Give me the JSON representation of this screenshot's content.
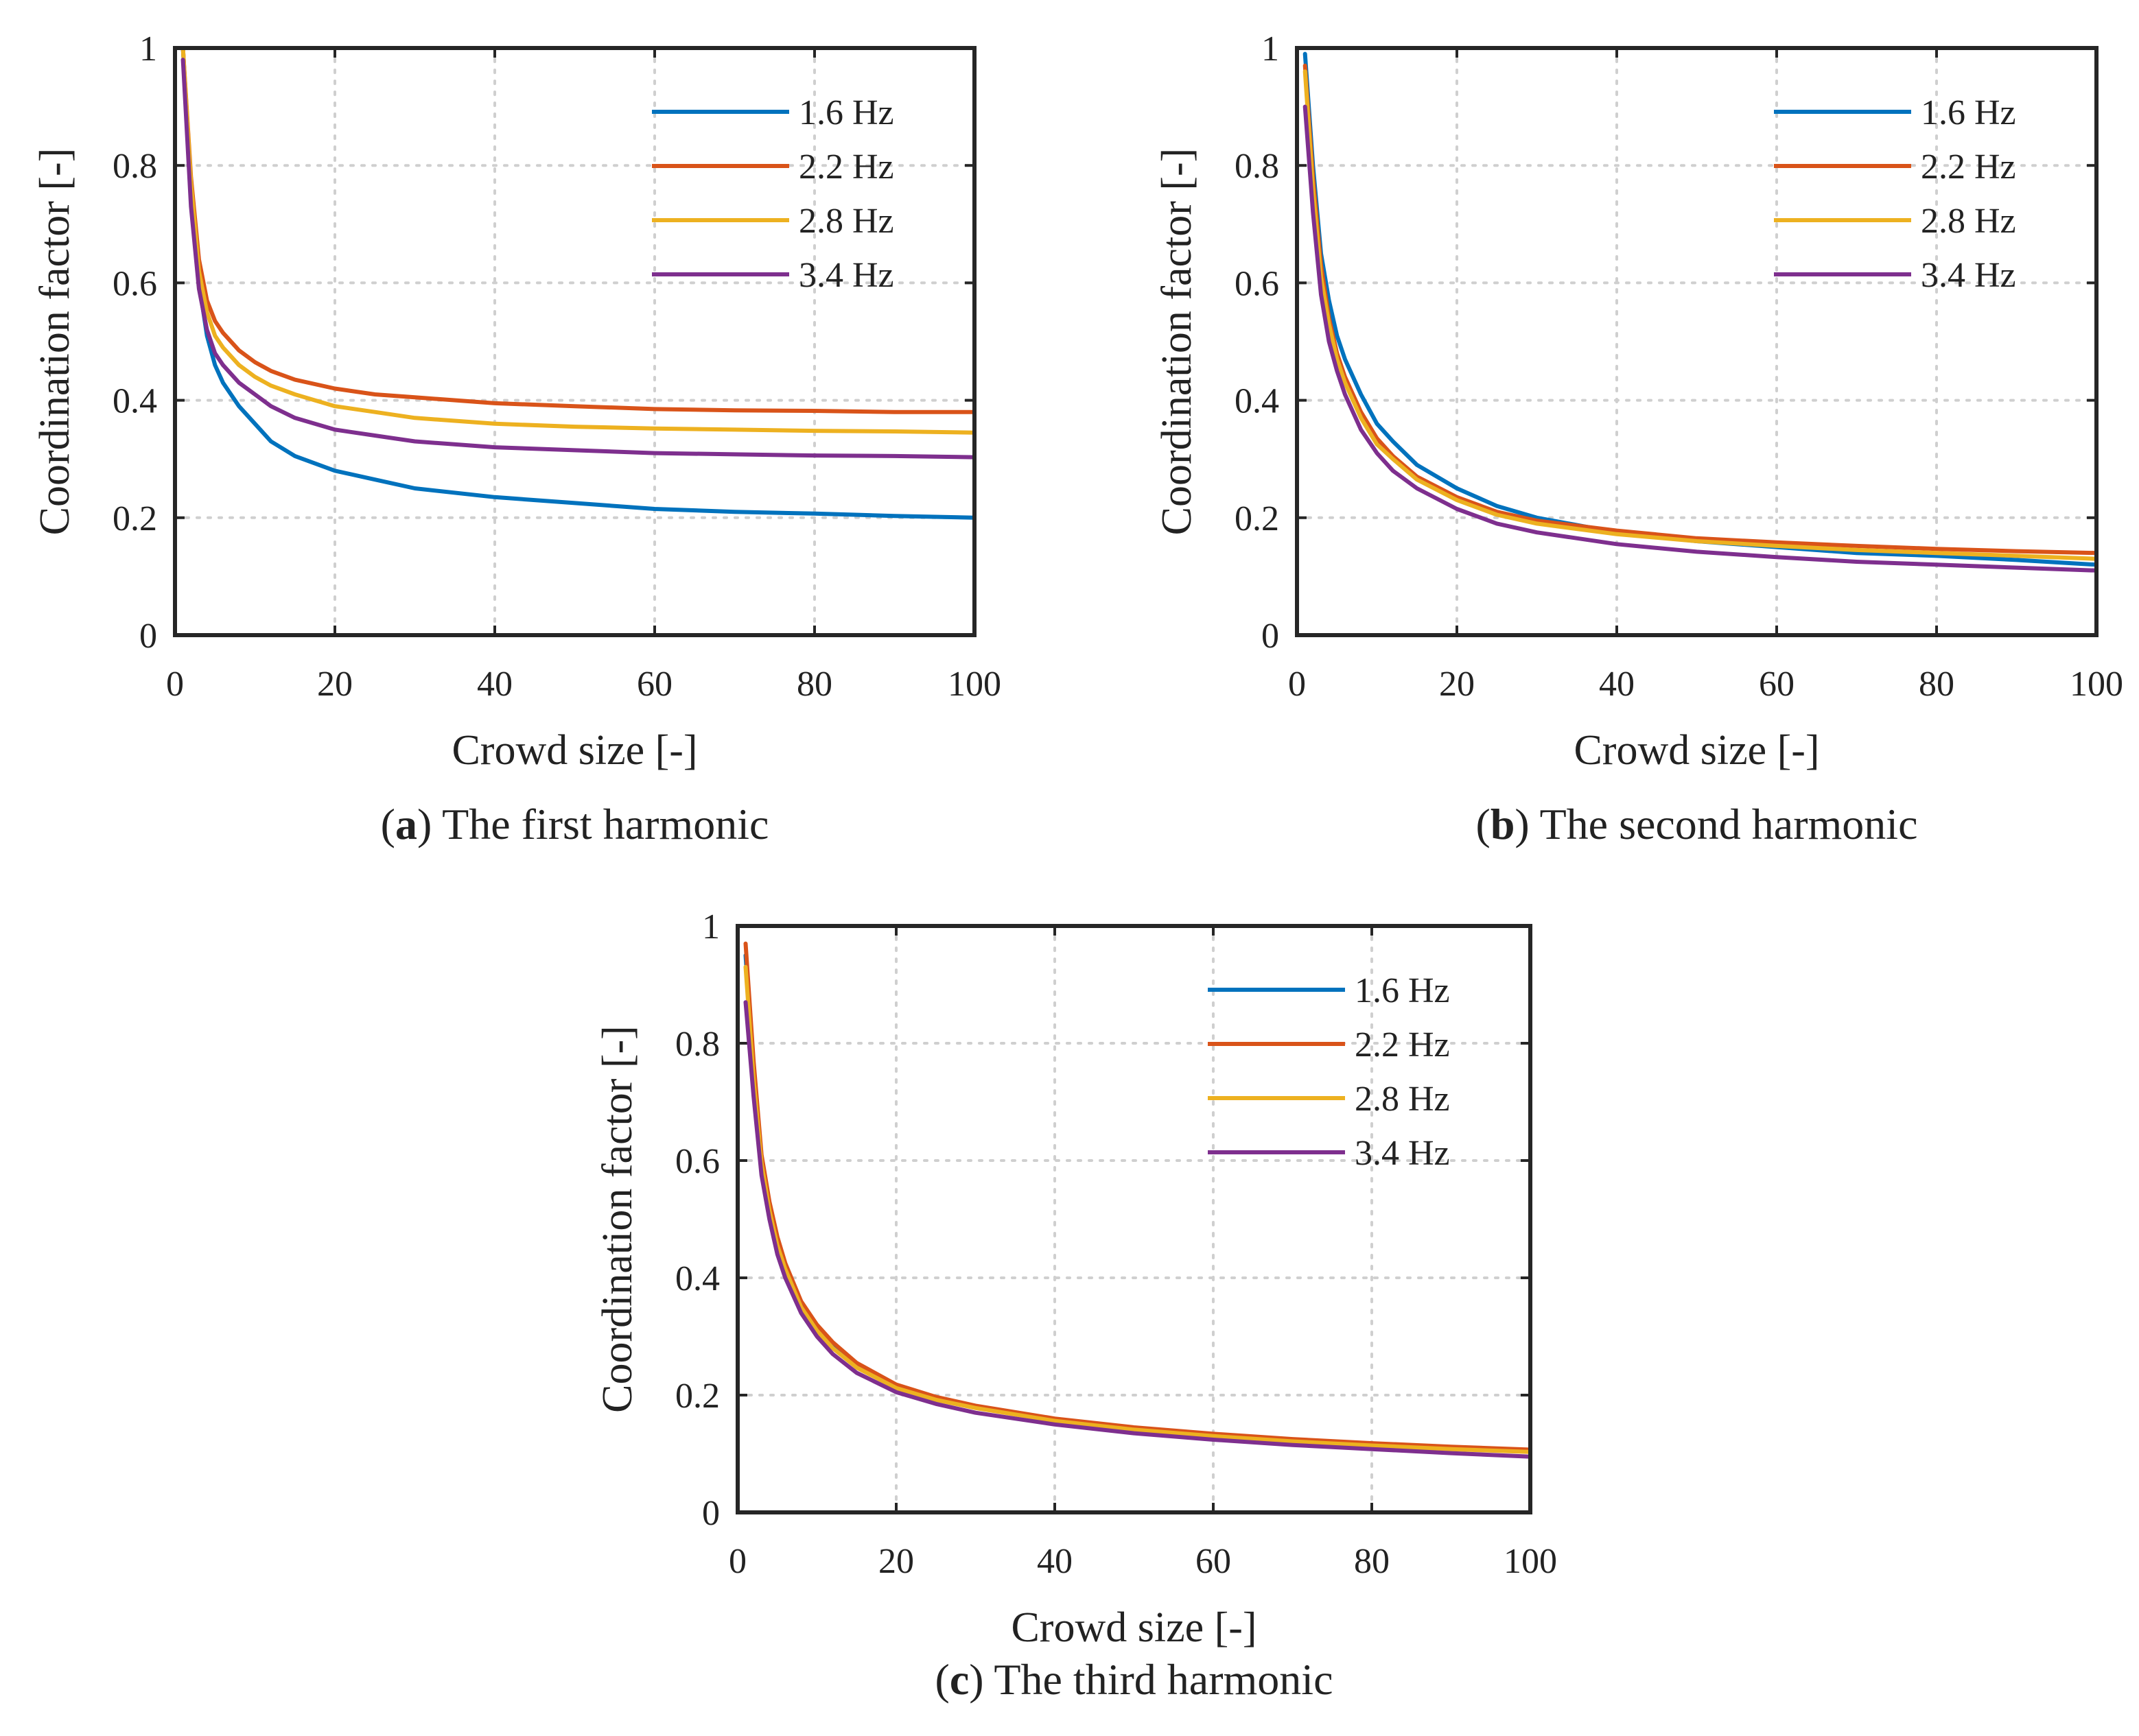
{
  "series_colors": {
    "1.6 Hz": "#0072BD",
    "2.2 Hz": "#D95319",
    "2.8 Hz": "#EDB120",
    "3.4 Hz": "#7E2F8E"
  },
  "chart_data": [
    {
      "type": "line",
      "panel_letter": "a",
      "caption": "The first harmonic",
      "xlabel": "Crowd size [-]",
      "ylabel": "Coordination factor [-]",
      "xlim": [
        0,
        100
      ],
      "ylim": [
        0,
        1
      ],
      "xticks": [
        0,
        20,
        40,
        60,
        80,
        100
      ],
      "yticks": [
        0,
        0.2,
        0.4,
        0.6,
        0.8,
        1
      ],
      "ytick_labels": [
        "0",
        "0.2",
        "0.4",
        "0.6",
        "0.8",
        "1"
      ],
      "grid": true,
      "legend_position": "top-right",
      "x": [
        1,
        2,
        3,
        4,
        5,
        6,
        8,
        10,
        12,
        15,
        20,
        25,
        30,
        40,
        50,
        60,
        70,
        80,
        90,
        100
      ],
      "series": [
        {
          "name": "1.6 Hz",
          "values": [
            1.0,
            0.75,
            0.6,
            0.51,
            0.46,
            0.43,
            0.39,
            0.36,
            0.33,
            0.305,
            0.28,
            0.265,
            0.25,
            0.235,
            0.225,
            0.215,
            0.21,
            0.207,
            0.203,
            0.2
          ]
        },
        {
          "name": "2.2 Hz",
          "values": [
            1.0,
            0.78,
            0.64,
            0.57,
            0.535,
            0.515,
            0.485,
            0.465,
            0.45,
            0.435,
            0.42,
            0.41,
            0.405,
            0.395,
            0.39,
            0.385,
            0.383,
            0.382,
            0.38,
            0.38
          ]
        },
        {
          "name": "2.8 Hz",
          "values": [
            1.0,
            0.77,
            0.62,
            0.55,
            0.51,
            0.49,
            0.46,
            0.44,
            0.425,
            0.41,
            0.39,
            0.38,
            0.37,
            0.36,
            0.355,
            0.352,
            0.35,
            0.348,
            0.347,
            0.345
          ]
        },
        {
          "name": "3.4 Hz",
          "values": [
            0.98,
            0.73,
            0.59,
            0.52,
            0.48,
            0.46,
            0.43,
            0.41,
            0.39,
            0.37,
            0.35,
            0.34,
            0.33,
            0.32,
            0.315,
            0.31,
            0.308,
            0.306,
            0.305,
            0.303
          ]
        }
      ]
    },
    {
      "type": "line",
      "panel_letter": "b",
      "caption": "The second harmonic",
      "xlabel": "Crowd size [-]",
      "ylabel": "Coordination factor [-]",
      "xlim": [
        0,
        100
      ],
      "ylim": [
        0,
        1
      ],
      "xticks": [
        0,
        20,
        40,
        60,
        80,
        100
      ],
      "yticks": [
        0,
        0.2,
        0.4,
        0.6,
        0.8,
        1
      ],
      "ytick_labels": [
        "0",
        "0.2",
        "0.4",
        "0.6",
        "0.8",
        "1"
      ],
      "grid": true,
      "legend_position": "top-right",
      "x": [
        1,
        2,
        3,
        4,
        5,
        6,
        8,
        10,
        12,
        15,
        20,
        25,
        30,
        40,
        50,
        60,
        70,
        80,
        90,
        100
      ],
      "series": [
        {
          "name": "1.6 Hz",
          "values": [
            0.99,
            0.8,
            0.65,
            0.57,
            0.51,
            0.47,
            0.41,
            0.36,
            0.33,
            0.29,
            0.25,
            0.22,
            0.2,
            0.175,
            0.16,
            0.15,
            0.14,
            0.135,
            0.128,
            0.12
          ]
        },
        {
          "name": "2.2 Hz",
          "values": [
            0.97,
            0.78,
            0.63,
            0.54,
            0.48,
            0.44,
            0.38,
            0.335,
            0.305,
            0.27,
            0.235,
            0.21,
            0.195,
            0.178,
            0.165,
            0.158,
            0.152,
            0.147,
            0.143,
            0.14
          ]
        },
        {
          "name": "2.8 Hz",
          "values": [
            0.96,
            0.76,
            0.61,
            0.53,
            0.47,
            0.43,
            0.37,
            0.325,
            0.3,
            0.265,
            0.23,
            0.205,
            0.19,
            0.172,
            0.16,
            0.152,
            0.145,
            0.14,
            0.135,
            0.13
          ]
        },
        {
          "name": "3.4 Hz",
          "values": [
            0.9,
            0.72,
            0.58,
            0.5,
            0.45,
            0.41,
            0.35,
            0.31,
            0.28,
            0.25,
            0.215,
            0.19,
            0.175,
            0.155,
            0.142,
            0.133,
            0.125,
            0.12,
            0.115,
            0.11
          ]
        }
      ]
    },
    {
      "type": "line",
      "panel_letter": "c",
      "caption": "The third harmonic",
      "xlabel": "Crowd size [-]",
      "ylabel": "Coordination factor [-]",
      "xlim": [
        0,
        100
      ],
      "ylim": [
        0,
        1
      ],
      "xticks": [
        0,
        20,
        40,
        60,
        80,
        100
      ],
      "yticks": [
        0,
        0.2,
        0.4,
        0.6,
        0.8,
        1
      ],
      "ytick_labels": [
        "0",
        "0.2",
        "0.4",
        "0.6",
        "0.8",
        "1"
      ],
      "grid": true,
      "legend_position": "top-right",
      "x": [
        1,
        2,
        3,
        4,
        5,
        6,
        8,
        10,
        12,
        15,
        20,
        25,
        30,
        40,
        50,
        60,
        70,
        80,
        90,
        100
      ],
      "series": [
        {
          "name": "1.6 Hz",
          "values": [
            0.95,
            0.75,
            0.6,
            0.52,
            0.46,
            0.42,
            0.355,
            0.315,
            0.285,
            0.25,
            0.215,
            0.195,
            0.18,
            0.158,
            0.143,
            0.132,
            0.123,
            0.116,
            0.11,
            0.105
          ]
        },
        {
          "name": "2.2 Hz",
          "values": [
            0.97,
            0.77,
            0.61,
            0.53,
            0.47,
            0.425,
            0.36,
            0.32,
            0.29,
            0.255,
            0.218,
            0.197,
            0.182,
            0.16,
            0.145,
            0.134,
            0.125,
            0.118,
            0.112,
            0.107
          ]
        },
        {
          "name": "2.8 Hz",
          "values": [
            0.93,
            0.74,
            0.595,
            0.515,
            0.455,
            0.415,
            0.35,
            0.31,
            0.28,
            0.247,
            0.212,
            0.192,
            0.178,
            0.156,
            0.141,
            0.13,
            0.121,
            0.114,
            0.108,
            0.103
          ]
        },
        {
          "name": "3.4 Hz",
          "values": [
            0.87,
            0.71,
            0.575,
            0.5,
            0.44,
            0.4,
            0.34,
            0.3,
            0.27,
            0.238,
            0.205,
            0.185,
            0.17,
            0.15,
            0.135,
            0.124,
            0.115,
            0.108,
            0.101,
            0.095
          ]
        }
      ]
    }
  ]
}
